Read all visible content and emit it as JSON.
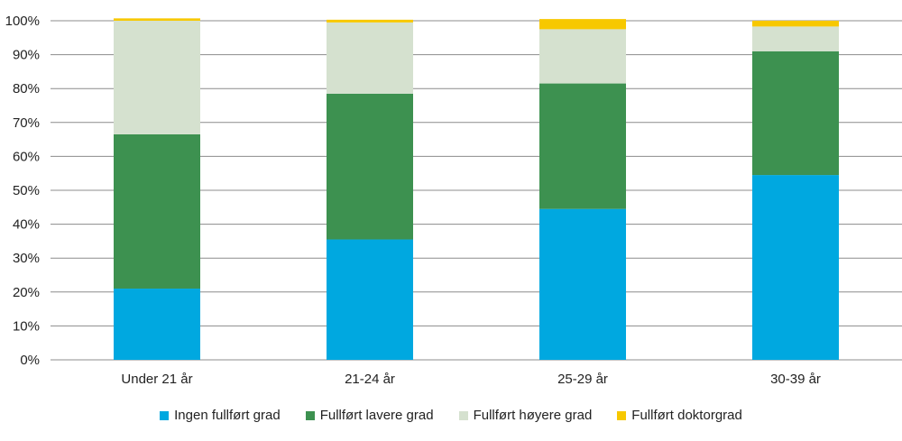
{
  "chart_data": {
    "type": "bar",
    "stacked": true,
    "categories": [
      "Under 21 år",
      "21-24 år",
      "25-29 år",
      "30-39 år"
    ],
    "series": [
      {
        "name": "Ingen fullført grad",
        "color": "#00a8e0",
        "values": [
          21,
          35.5,
          44.5,
          54.5
        ]
      },
      {
        "name": "Fullført lavere grad",
        "color": "#3d9150",
        "values": [
          45.5,
          43,
          37,
          36.5
        ]
      },
      {
        "name": "Fullført høyere grad",
        "color": "#d5e1cf",
        "values": [
          33.5,
          21,
          16,
          7.3
        ]
      },
      {
        "name": "Fullført doktorgrad",
        "color": "#f7c800",
        "values": [
          0.7,
          0.8,
          3,
          1.7
        ]
      }
    ],
    "ylim": [
      0,
      100
    ],
    "yticks": [
      "0%",
      "10%",
      "20%",
      "30%",
      "40%",
      "50%",
      "60%",
      "70%",
      "80%",
      "90%",
      "100%"
    ],
    "grid": true,
    "legend": "bottom"
  }
}
